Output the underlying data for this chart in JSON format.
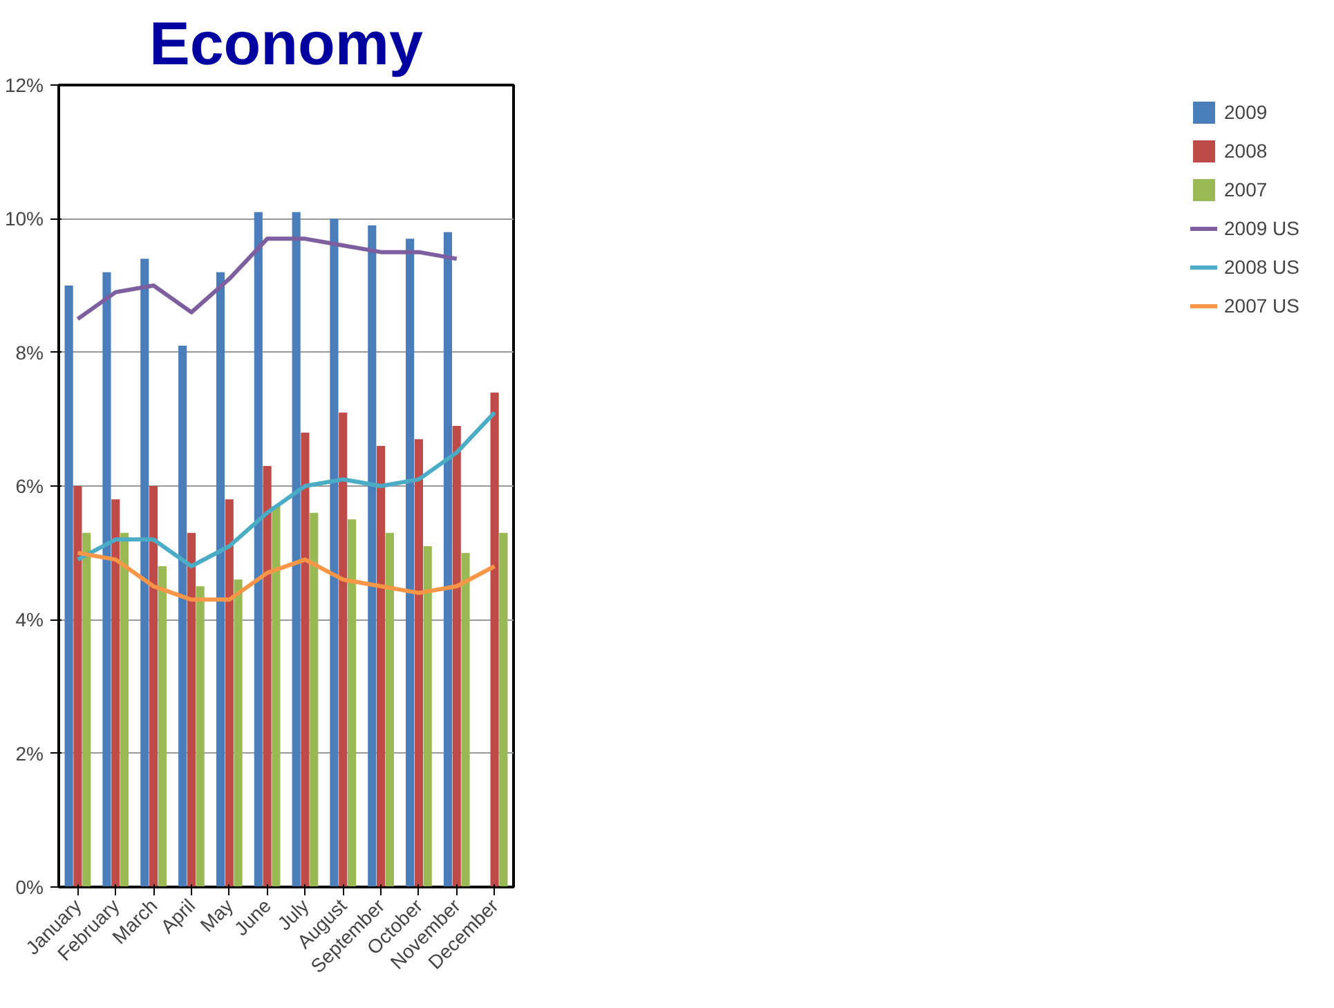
{
  "chart_data": {
    "type": "bar",
    "title": "Economy",
    "categories": [
      "January",
      "February",
      "March",
      "April",
      "May",
      "June",
      "July",
      "August",
      "September",
      "October",
      "November",
      "December"
    ],
    "series": [
      {
        "name": "2009",
        "color": "#4a7ebb",
        "values": [
          9.0,
          9.2,
          9.4,
          8.1,
          9.2,
          10.1,
          10.1,
          10.0,
          9.9,
          9.7,
          9.8,
          null
        ]
      },
      {
        "name": "2008",
        "color": "#be4b48",
        "values": [
          6.0,
          5.8,
          6.0,
          5.3,
          5.8,
          6.3,
          6.8,
          7.1,
          6.6,
          6.7,
          6.9,
          7.4
        ]
      },
      {
        "name": "2007",
        "color": "#98b954",
        "values": [
          5.3,
          5.3,
          4.8,
          4.5,
          4.6,
          5.7,
          5.6,
          5.5,
          5.3,
          5.1,
          5.0,
          5.3
        ]
      },
      {
        "name": "2009 US",
        "type": "line",
        "color": "#7d5fa0",
        "values": [
          8.5,
          8.9,
          9.0,
          8.6,
          9.1,
          9.7,
          9.7,
          9.6,
          9.5,
          9.5,
          9.4,
          null
        ]
      },
      {
        "name": "2008 US",
        "type": "line",
        "color": "#4bacc6",
        "values": [
          4.9,
          5.2,
          5.2,
          4.8,
          5.1,
          5.6,
          6.0,
          6.1,
          6.0,
          6.1,
          6.5,
          7.1
        ]
      },
      {
        "name": "2007 US",
        "type": "line",
        "color": "#f79646",
        "values": [
          5.0,
          4.9,
          4.5,
          4.3,
          4.3,
          4.7,
          4.9,
          4.6,
          4.5,
          4.4,
          4.5,
          4.8
        ]
      }
    ],
    "ylim": [
      0,
      12
    ],
    "yticks": [
      {
        "value": 0,
        "label": "0%"
      },
      {
        "value": 2,
        "label": "2%"
      },
      {
        "value": 4,
        "label": "4%"
      },
      {
        "value": 6,
        "label": "6%"
      },
      {
        "value": 8,
        "label": "8%"
      },
      {
        "value": 10,
        "label": "10%"
      },
      {
        "value": 12,
        "label": "12%"
      }
    ],
    "grid": "y",
    "legend": "right",
    "marker": "none",
    "line_style": "solid"
  }
}
